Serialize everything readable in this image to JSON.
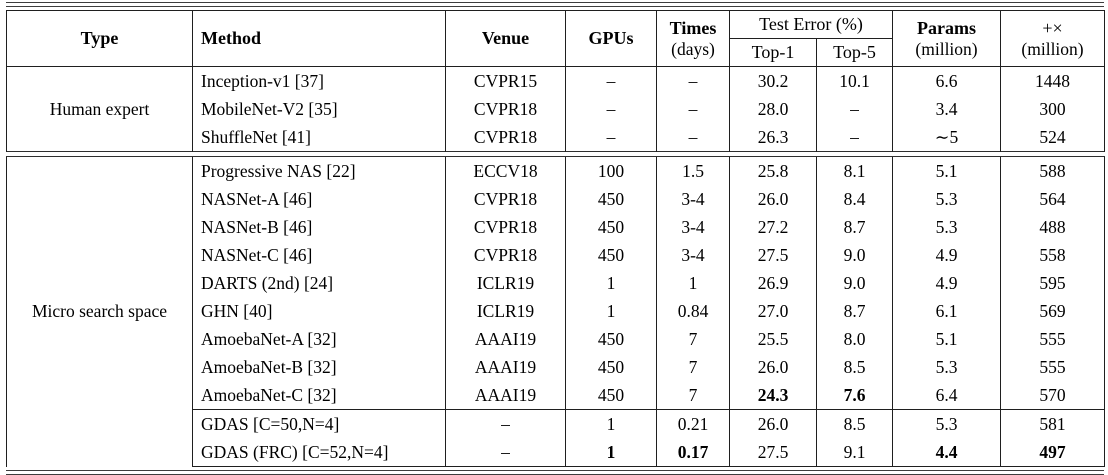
{
  "table": {
    "header": {
      "type": "Type",
      "method": "Method",
      "venue": "Venue",
      "gpus": "GPUs",
      "times": "Times",
      "times_sub": "(days)",
      "test_error": "Test Error (%)",
      "top1": "Top-1",
      "top5": "Top-5",
      "params": "Params",
      "params_sub": "(million)",
      "madds": "+×",
      "madds_sub": "(million)"
    },
    "sections": [
      {
        "type": "Human expert",
        "rows": [
          {
            "method": "Inception-v1 [37]",
            "venue": "CVPR15",
            "gpus": "–",
            "times": "–",
            "top1": "30.2",
            "top5": "10.1",
            "params": "6.6",
            "madds": "1448",
            "bold": []
          },
          {
            "method": "MobileNet-V2 [35]",
            "venue": "CVPR18",
            "gpus": "–",
            "times": "–",
            "top1": "28.0",
            "top5": "–",
            "params": "3.4",
            "madds": "300",
            "bold": []
          },
          {
            "method": "ShuffleNet [41]",
            "venue": "CVPR18",
            "gpus": "–",
            "times": "–",
            "top1": "26.3",
            "top5": "–",
            "params": "∼5",
            "madds": "524",
            "bold": []
          }
        ]
      },
      {
        "type": "Micro search space",
        "cline_before_row": 9,
        "rows": [
          {
            "method": "Progressive NAS [22]",
            "venue": "ECCV18",
            "gpus": "100",
            "times": "1.5",
            "top1": "25.8",
            "top5": "8.1",
            "params": "5.1",
            "madds": "588",
            "bold": []
          },
          {
            "method": "NASNet-A [46]",
            "venue": "CVPR18",
            "gpus": "450",
            "times": "3-4",
            "top1": "26.0",
            "top5": "8.4",
            "params": "5.3",
            "madds": "564",
            "bold": []
          },
          {
            "method": "NASNet-B [46]",
            "venue": "CVPR18",
            "gpus": "450",
            "times": "3-4",
            "top1": "27.2",
            "top5": "8.7",
            "params": "5.3",
            "madds": "488",
            "bold": []
          },
          {
            "method": "NASNet-C [46]",
            "venue": "CVPR18",
            "gpus": "450",
            "times": "3-4",
            "top1": "27.5",
            "top5": "9.0",
            "params": "4.9",
            "madds": "558",
            "bold": []
          },
          {
            "method": "DARTS (2nd) [24]",
            "venue": "ICLR19",
            "gpus": "1",
            "times": "1",
            "top1": "26.9",
            "top5": "9.0",
            "params": "4.9",
            "madds": "595",
            "bold": []
          },
          {
            "method": "GHN [40]",
            "venue": "ICLR19",
            "gpus": "1",
            "times": "0.84",
            "top1": "27.0",
            "top5": "8.7",
            "params": "6.1",
            "madds": "569",
            "bold": []
          },
          {
            "method": "AmoebaNet-A [32]",
            "venue": "AAAI19",
            "gpus": "450",
            "times": "7",
            "top1": "25.5",
            "top5": "8.0",
            "params": "5.1",
            "madds": "555",
            "bold": []
          },
          {
            "method": "AmoebaNet-B [32]",
            "venue": "AAAI19",
            "gpus": "450",
            "times": "7",
            "top1": "26.0",
            "top5": "8.5",
            "params": "5.3",
            "madds": "555",
            "bold": []
          },
          {
            "method": "AmoebaNet-C [32]",
            "venue": "AAAI19",
            "gpus": "450",
            "times": "7",
            "top1": "24.3",
            "top5": "7.6",
            "params": "6.4",
            "madds": "570",
            "bold": [
              "top1",
              "top5"
            ]
          },
          {
            "method": "GDAS [C=50,N=4]",
            "venue": "–",
            "gpus": "1",
            "times": "0.21",
            "top1": "26.0",
            "top5": "8.5",
            "params": "5.3",
            "madds": "581",
            "bold": []
          },
          {
            "method": "GDAS (FRC) [C=52,N=4]",
            "venue": "–",
            "gpus": "1",
            "times": "0.17",
            "top1": "27.5",
            "top5": "9.1",
            "params": "4.4",
            "madds": "497",
            "bold": [
              "gpus",
              "times",
              "params",
              "madds"
            ]
          }
        ]
      }
    ]
  }
}
